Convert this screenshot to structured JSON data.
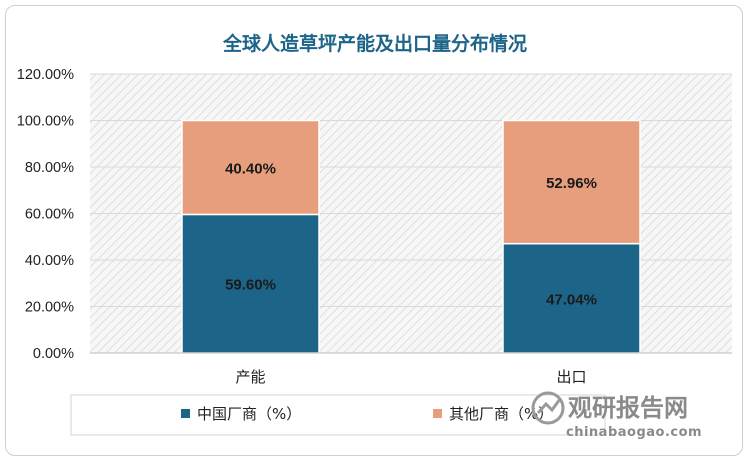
{
  "chart_data": {
    "type": "bar",
    "stacked": true,
    "title": "全球人造草坪产能及出口量分布情况",
    "categories": [
      "产能",
      "出口"
    ],
    "series": [
      {
        "name": "中国厂商（%）",
        "values": [
          59.6,
          47.04
        ],
        "labels": [
          "59.60%",
          "47.04%"
        ],
        "color": "#1d6489"
      },
      {
        "name": "其他厂商（%）",
        "values": [
          40.4,
          52.96
        ],
        "labels": [
          "40.40%",
          "52.96%"
        ],
        "color": "#e79e7c"
      }
    ],
    "ylim": [
      0,
      120
    ],
    "yticks": [
      "0.00%",
      "20.00%",
      "40.00%",
      "60.00%",
      "80.00%",
      "100.00%",
      "120.00%"
    ],
    "ytick_values": [
      0,
      20,
      40,
      60,
      80,
      100,
      120
    ],
    "grid": true,
    "legend_position": "bottom"
  },
  "watermark": {
    "name_cn": "观研报告网",
    "url": "chinabaogao.com"
  },
  "colors": {
    "title": "#1d6489",
    "plot_background": "#f5f5f5"
  }
}
